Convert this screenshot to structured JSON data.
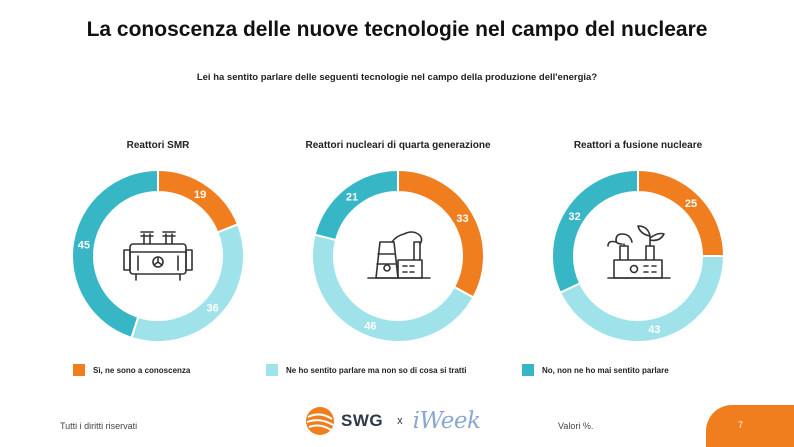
{
  "title": "La conoscenza delle nuove tecnologie nel campo del nucleare",
  "subtitle": "Lei ha sentito parlare delle seguenti tecnologie nel campo della produzione dell'energia?",
  "colors": {
    "yes": "#f07d1e",
    "heard": "#9fe2ea",
    "no": "#37b6c6"
  },
  "legend": [
    {
      "label": "Sì, ne sono a conoscenza",
      "color": "#f07d1e"
    },
    {
      "label": "Ne ho sentito parlare ma non so di cosa si tratti",
      "color": "#9fe2ea"
    },
    {
      "label": "No, non ne ho mai sentito parlare",
      "color": "#37b6c6"
    }
  ],
  "chart_data": [
    {
      "type": "pie",
      "title": "Reattori SMR",
      "categories": [
        "Sì, ne sono a conoscenza",
        "Ne ho sentito parlare ma non so di cosa si tratti",
        "No, non ne ho mai sentito parlare"
      ],
      "values": [
        19,
        36,
        45
      ],
      "icon": "transformer-icon"
    },
    {
      "type": "pie",
      "title": "Reattori nucleari di quarta generazione",
      "categories": [
        "Sì, ne sono a conoscenza",
        "Ne ho sentito parlare ma non so di cosa si tratti",
        "No, non ne ho mai sentito parlare"
      ],
      "values": [
        33,
        46,
        21
      ],
      "icon": "nuclear-plant-icon"
    },
    {
      "type": "pie",
      "title": "Reattori a fusione nucleare",
      "categories": [
        "Sì, ne sono a conoscenza",
        "Ne ho sentito parlare ma non so di cosa si tratti",
        "No, non ne ho mai sentito parlare"
      ],
      "values": [
        25,
        43,
        32
      ],
      "icon": "eco-plant-icon"
    }
  ],
  "footer": {
    "rights": "Tutti i diritti riservati",
    "logo_swg": "SWG",
    "logo_times": "x",
    "logo_iweek": "iWeek",
    "values_note": "Valori %.",
    "page_number": "7"
  }
}
